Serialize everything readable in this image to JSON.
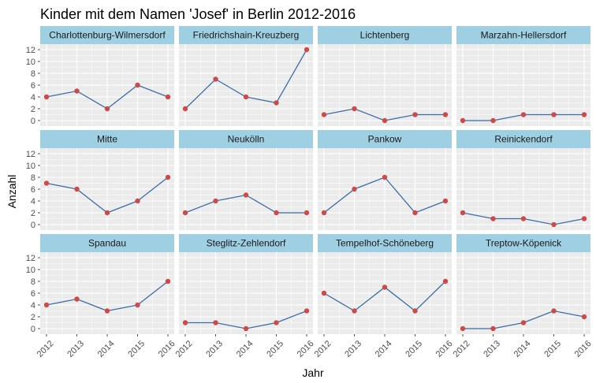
{
  "chart_data": {
    "type": "line",
    "title": "Kinder mit dem Namen 'Josef' in Berlin 2012-2016",
    "xlabel": "Jahr",
    "ylabel": "Anzahl",
    "x": [
      "2012",
      "2013",
      "2014",
      "2015",
      "2016"
    ],
    "ylim": [
      0,
      12
    ],
    "yticks": [
      "0",
      "2",
      "4",
      "6",
      "8",
      "10",
      "12"
    ],
    "grid": true,
    "colors": {
      "line": "#3a6ea5",
      "point": "#cd4a4a",
      "strip": "#9ecfe2",
      "panel": "#ebebeb",
      "grid": "#ffffff"
    },
    "panels": [
      {
        "name": "Charlottenburg-Wilmersdorf",
        "values": [
          4,
          5,
          2,
          6,
          4
        ]
      },
      {
        "name": "Friedrichshain-Kreuzberg",
        "values": [
          2,
          7,
          4,
          3,
          12
        ]
      },
      {
        "name": "Lichtenberg",
        "values": [
          1,
          2,
          0,
          1,
          1
        ]
      },
      {
        "name": "Marzahn-Hellersdorf",
        "values": [
          0,
          0,
          1,
          1,
          1
        ]
      },
      {
        "name": "Mitte",
        "values": [
          7,
          6,
          2,
          4,
          8
        ]
      },
      {
        "name": "Neukölln",
        "values": [
          2,
          4,
          5,
          2,
          2
        ]
      },
      {
        "name": "Pankow",
        "values": [
          2,
          6,
          8,
          2,
          4
        ]
      },
      {
        "name": "Reinickendorf",
        "values": [
          2,
          1,
          1,
          0,
          1
        ]
      },
      {
        "name": "Spandau",
        "values": [
          4,
          5,
          3,
          4,
          8
        ]
      },
      {
        "name": "Steglitz-Zehlendorf",
        "values": [
          1,
          1,
          0,
          1,
          3
        ]
      },
      {
        "name": "Tempelhof-Schöneberg",
        "values": [
          6,
          3,
          7,
          3,
          8
        ]
      },
      {
        "name": "Treptow-Köpenick",
        "values": [
          0,
          0,
          1,
          3,
          2
        ]
      }
    ]
  }
}
